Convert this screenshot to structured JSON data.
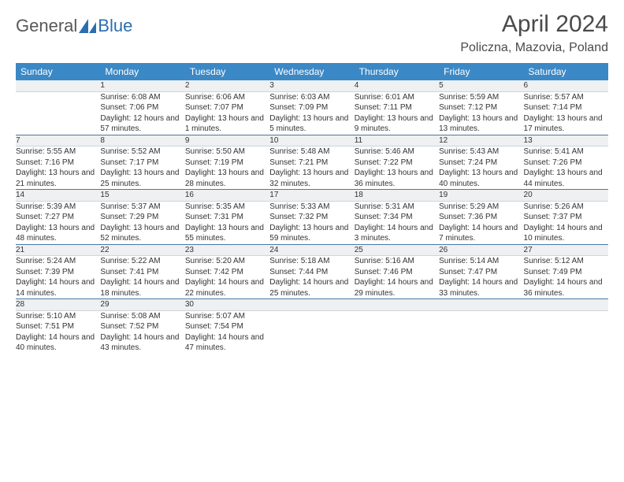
{
  "logo": {
    "text1": "General",
    "text2": "Blue"
  },
  "title": "April 2024",
  "location": "Policzna, Mazovia, Poland",
  "colors": {
    "header_bg": "#3b88c6",
    "header_text": "#ffffff",
    "daynum_bg": "#eef0f1",
    "row_border": "#4a79a6",
    "page_bg": "#ffffff",
    "logo_gray": "#585858",
    "logo_blue": "#2a6fb0"
  },
  "day_headers": [
    "Sunday",
    "Monday",
    "Tuesday",
    "Wednesday",
    "Thursday",
    "Friday",
    "Saturday"
  ],
  "weeks": [
    [
      {
        "num": "",
        "sunrise": "",
        "sunset": "",
        "daylight": ""
      },
      {
        "num": "1",
        "sunrise": "Sunrise: 6:08 AM",
        "sunset": "Sunset: 7:06 PM",
        "daylight": "Daylight: 12 hours and 57 minutes."
      },
      {
        "num": "2",
        "sunrise": "Sunrise: 6:06 AM",
        "sunset": "Sunset: 7:07 PM",
        "daylight": "Daylight: 13 hours and 1 minutes."
      },
      {
        "num": "3",
        "sunrise": "Sunrise: 6:03 AM",
        "sunset": "Sunset: 7:09 PM",
        "daylight": "Daylight: 13 hours and 5 minutes."
      },
      {
        "num": "4",
        "sunrise": "Sunrise: 6:01 AM",
        "sunset": "Sunset: 7:11 PM",
        "daylight": "Daylight: 13 hours and 9 minutes."
      },
      {
        "num": "5",
        "sunrise": "Sunrise: 5:59 AM",
        "sunset": "Sunset: 7:12 PM",
        "daylight": "Daylight: 13 hours and 13 minutes."
      },
      {
        "num": "6",
        "sunrise": "Sunrise: 5:57 AM",
        "sunset": "Sunset: 7:14 PM",
        "daylight": "Daylight: 13 hours and 17 minutes."
      }
    ],
    [
      {
        "num": "7",
        "sunrise": "Sunrise: 5:55 AM",
        "sunset": "Sunset: 7:16 PM",
        "daylight": "Daylight: 13 hours and 21 minutes."
      },
      {
        "num": "8",
        "sunrise": "Sunrise: 5:52 AM",
        "sunset": "Sunset: 7:17 PM",
        "daylight": "Daylight: 13 hours and 25 minutes."
      },
      {
        "num": "9",
        "sunrise": "Sunrise: 5:50 AM",
        "sunset": "Sunset: 7:19 PM",
        "daylight": "Daylight: 13 hours and 28 minutes."
      },
      {
        "num": "10",
        "sunrise": "Sunrise: 5:48 AM",
        "sunset": "Sunset: 7:21 PM",
        "daylight": "Daylight: 13 hours and 32 minutes."
      },
      {
        "num": "11",
        "sunrise": "Sunrise: 5:46 AM",
        "sunset": "Sunset: 7:22 PM",
        "daylight": "Daylight: 13 hours and 36 minutes."
      },
      {
        "num": "12",
        "sunrise": "Sunrise: 5:43 AM",
        "sunset": "Sunset: 7:24 PM",
        "daylight": "Daylight: 13 hours and 40 minutes."
      },
      {
        "num": "13",
        "sunrise": "Sunrise: 5:41 AM",
        "sunset": "Sunset: 7:26 PM",
        "daylight": "Daylight: 13 hours and 44 minutes."
      }
    ],
    [
      {
        "num": "14",
        "sunrise": "Sunrise: 5:39 AM",
        "sunset": "Sunset: 7:27 PM",
        "daylight": "Daylight: 13 hours and 48 minutes."
      },
      {
        "num": "15",
        "sunrise": "Sunrise: 5:37 AM",
        "sunset": "Sunset: 7:29 PM",
        "daylight": "Daylight: 13 hours and 52 minutes."
      },
      {
        "num": "16",
        "sunrise": "Sunrise: 5:35 AM",
        "sunset": "Sunset: 7:31 PM",
        "daylight": "Daylight: 13 hours and 55 minutes."
      },
      {
        "num": "17",
        "sunrise": "Sunrise: 5:33 AM",
        "sunset": "Sunset: 7:32 PM",
        "daylight": "Daylight: 13 hours and 59 minutes."
      },
      {
        "num": "18",
        "sunrise": "Sunrise: 5:31 AM",
        "sunset": "Sunset: 7:34 PM",
        "daylight": "Daylight: 14 hours and 3 minutes."
      },
      {
        "num": "19",
        "sunrise": "Sunrise: 5:29 AM",
        "sunset": "Sunset: 7:36 PM",
        "daylight": "Daylight: 14 hours and 7 minutes."
      },
      {
        "num": "20",
        "sunrise": "Sunrise: 5:26 AM",
        "sunset": "Sunset: 7:37 PM",
        "daylight": "Daylight: 14 hours and 10 minutes."
      }
    ],
    [
      {
        "num": "21",
        "sunrise": "Sunrise: 5:24 AM",
        "sunset": "Sunset: 7:39 PM",
        "daylight": "Daylight: 14 hours and 14 minutes."
      },
      {
        "num": "22",
        "sunrise": "Sunrise: 5:22 AM",
        "sunset": "Sunset: 7:41 PM",
        "daylight": "Daylight: 14 hours and 18 minutes."
      },
      {
        "num": "23",
        "sunrise": "Sunrise: 5:20 AM",
        "sunset": "Sunset: 7:42 PM",
        "daylight": "Daylight: 14 hours and 22 minutes."
      },
      {
        "num": "24",
        "sunrise": "Sunrise: 5:18 AM",
        "sunset": "Sunset: 7:44 PM",
        "daylight": "Daylight: 14 hours and 25 minutes."
      },
      {
        "num": "25",
        "sunrise": "Sunrise: 5:16 AM",
        "sunset": "Sunset: 7:46 PM",
        "daylight": "Daylight: 14 hours and 29 minutes."
      },
      {
        "num": "26",
        "sunrise": "Sunrise: 5:14 AM",
        "sunset": "Sunset: 7:47 PM",
        "daylight": "Daylight: 14 hours and 33 minutes."
      },
      {
        "num": "27",
        "sunrise": "Sunrise: 5:12 AM",
        "sunset": "Sunset: 7:49 PM",
        "daylight": "Daylight: 14 hours and 36 minutes."
      }
    ],
    [
      {
        "num": "28",
        "sunrise": "Sunrise: 5:10 AM",
        "sunset": "Sunset: 7:51 PM",
        "daylight": "Daylight: 14 hours and 40 minutes."
      },
      {
        "num": "29",
        "sunrise": "Sunrise: 5:08 AM",
        "sunset": "Sunset: 7:52 PM",
        "daylight": "Daylight: 14 hours and 43 minutes."
      },
      {
        "num": "30",
        "sunrise": "Sunrise: 5:07 AM",
        "sunset": "Sunset: 7:54 PM",
        "daylight": "Daylight: 14 hours and 47 minutes."
      },
      {
        "num": "",
        "sunrise": "",
        "sunset": "",
        "daylight": ""
      },
      {
        "num": "",
        "sunrise": "",
        "sunset": "",
        "daylight": ""
      },
      {
        "num": "",
        "sunrise": "",
        "sunset": "",
        "daylight": ""
      },
      {
        "num": "",
        "sunrise": "",
        "sunset": "",
        "daylight": ""
      }
    ]
  ]
}
